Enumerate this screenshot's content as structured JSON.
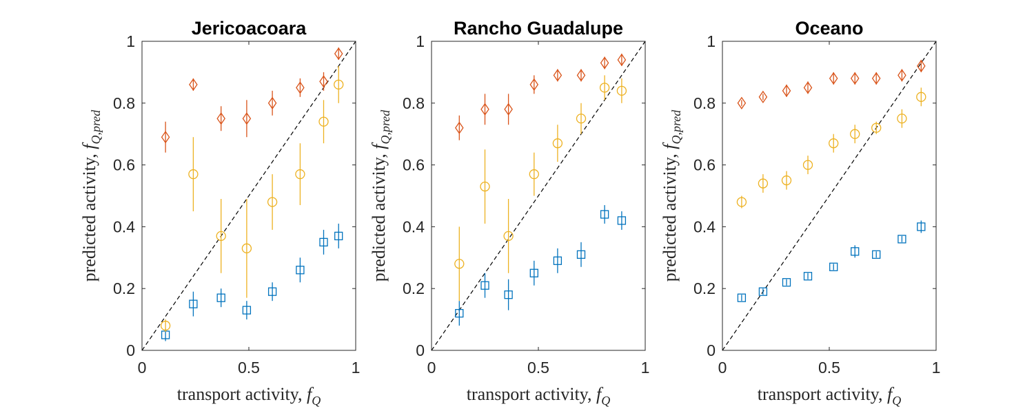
{
  "colors": {
    "series_square": "#0072BD",
    "series_circle": "#EDB120",
    "series_diamond": "#D95319",
    "axis": "#262626",
    "reference_line": "#000000"
  },
  "chart_data": [
    {
      "type": "scatter",
      "title": "Jericoacoara",
      "xlabel": "transport activity, f_Q",
      "ylabel": "predicted activity, f_Q,pred",
      "xlim": [
        0,
        1
      ],
      "ylim": [
        0,
        1
      ],
      "xticks": [
        "0",
        "0.5",
        "1"
      ],
      "yticks": [
        "0",
        "0.2",
        "0.4",
        "0.6",
        "0.8",
        "1"
      ],
      "grid": false,
      "reference_line": "y = x (dashed)",
      "series": [
        {
          "marker": "square",
          "color": "#0072BD",
          "x": [
            0.11,
            0.24,
            0.37,
            0.49,
            0.61,
            0.74,
            0.85,
            0.92
          ],
          "y": [
            0.05,
            0.15,
            0.17,
            0.13,
            0.19,
            0.26,
            0.35,
            0.37
          ],
          "err": [
            0.02,
            0.04,
            0.03,
            0.03,
            0.03,
            0.04,
            0.04,
            0.04
          ]
        },
        {
          "marker": "circle",
          "color": "#EDB120",
          "x": [
            0.11,
            0.24,
            0.37,
            0.49,
            0.61,
            0.74,
            0.85,
            0.92
          ],
          "y": [
            0.08,
            0.57,
            0.37,
            0.33,
            0.48,
            0.57,
            0.74,
            0.86
          ],
          "err": [
            0.02,
            0.12,
            0.12,
            0.16,
            0.09,
            0.1,
            0.07,
            0.06
          ]
        },
        {
          "marker": "diamond",
          "color": "#D95319",
          "x": [
            0.11,
            0.24,
            0.37,
            0.49,
            0.61,
            0.74,
            0.85,
            0.92
          ],
          "y": [
            0.69,
            0.86,
            0.75,
            0.75,
            0.8,
            0.85,
            0.87,
            0.96
          ],
          "err": [
            0.05,
            0.02,
            0.04,
            0.06,
            0.04,
            0.03,
            0.03,
            0.02
          ]
        }
      ]
    },
    {
      "type": "scatter",
      "title": "Rancho Guadalupe",
      "xlabel": "transport activity, f_Q",
      "ylabel": "predicted activity, f_Q,pred",
      "xlim": [
        0,
        1
      ],
      "ylim": [
        0,
        1
      ],
      "xticks": [
        "0",
        "0.5",
        "1"
      ],
      "yticks": [
        "0",
        "0.2",
        "0.4",
        "0.6",
        "0.8",
        "1"
      ],
      "grid": false,
      "reference_line": "y = x (dashed)",
      "series": [
        {
          "marker": "square",
          "color": "#0072BD",
          "x": [
            0.13,
            0.25,
            0.36,
            0.48,
            0.59,
            0.7,
            0.81,
            0.89
          ],
          "y": [
            0.12,
            0.21,
            0.18,
            0.25,
            0.29,
            0.31,
            0.44,
            0.42
          ],
          "err": [
            0.04,
            0.04,
            0.05,
            0.04,
            0.04,
            0.04,
            0.03,
            0.03
          ]
        },
        {
          "marker": "circle",
          "color": "#EDB120",
          "x": [
            0.13,
            0.25,
            0.36,
            0.48,
            0.59,
            0.7,
            0.81,
            0.89
          ],
          "y": [
            0.28,
            0.53,
            0.37,
            0.57,
            0.67,
            0.75,
            0.85,
            0.84
          ],
          "err": [
            0.12,
            0.12,
            0.12,
            0.07,
            0.06,
            0.05,
            0.04,
            0.04
          ]
        },
        {
          "marker": "diamond",
          "color": "#D95319",
          "x": [
            0.13,
            0.25,
            0.36,
            0.48,
            0.59,
            0.7,
            0.81,
            0.89
          ],
          "y": [
            0.72,
            0.78,
            0.78,
            0.86,
            0.89,
            0.89,
            0.93,
            0.94
          ],
          "err": [
            0.04,
            0.05,
            0.05,
            0.03,
            0.02,
            0.02,
            0.02,
            0.02
          ]
        }
      ]
    },
    {
      "type": "scatter",
      "title": "Oceano",
      "xlabel": "transport activity, f_Q",
      "ylabel": "predicted activity, f_Q,pred",
      "xlim": [
        0,
        1
      ],
      "ylim": [
        0,
        1
      ],
      "xticks": [
        "0",
        "0.5",
        "1"
      ],
      "yticks": [
        "0",
        "0.2",
        "0.4",
        "0.6",
        "0.8",
        "1"
      ],
      "grid": false,
      "reference_line": "y = x (dashed)",
      "series": [
        {
          "marker": "square",
          "color": "#0072BD",
          "x": [
            0.09,
            0.19,
            0.3,
            0.4,
            0.52,
            0.62,
            0.72,
            0.84,
            0.93
          ],
          "y": [
            0.17,
            0.19,
            0.22,
            0.24,
            0.27,
            0.32,
            0.31,
            0.36,
            0.4
          ],
          "err": [
            0.01,
            0.01,
            0.01,
            0.01,
            0.01,
            0.02,
            0.01,
            0.01,
            0.02
          ]
        },
        {
          "marker": "circle",
          "color": "#EDB120",
          "x": [
            0.09,
            0.19,
            0.3,
            0.4,
            0.52,
            0.62,
            0.72,
            0.84,
            0.93
          ],
          "y": [
            0.48,
            0.54,
            0.55,
            0.6,
            0.67,
            0.7,
            0.72,
            0.75,
            0.82
          ],
          "err": [
            0.02,
            0.03,
            0.03,
            0.03,
            0.03,
            0.03,
            0.02,
            0.03,
            0.03
          ]
        },
        {
          "marker": "diamond",
          "color": "#D95319",
          "x": [
            0.09,
            0.19,
            0.3,
            0.4,
            0.52,
            0.62,
            0.72,
            0.84,
            0.93
          ],
          "y": [
            0.8,
            0.82,
            0.84,
            0.85,
            0.88,
            0.88,
            0.88,
            0.89,
            0.92
          ],
          "err": [
            0.01,
            0.01,
            0.02,
            0.02,
            0.02,
            0.02,
            0.02,
            0.02,
            0.02
          ]
        }
      ]
    }
  ]
}
